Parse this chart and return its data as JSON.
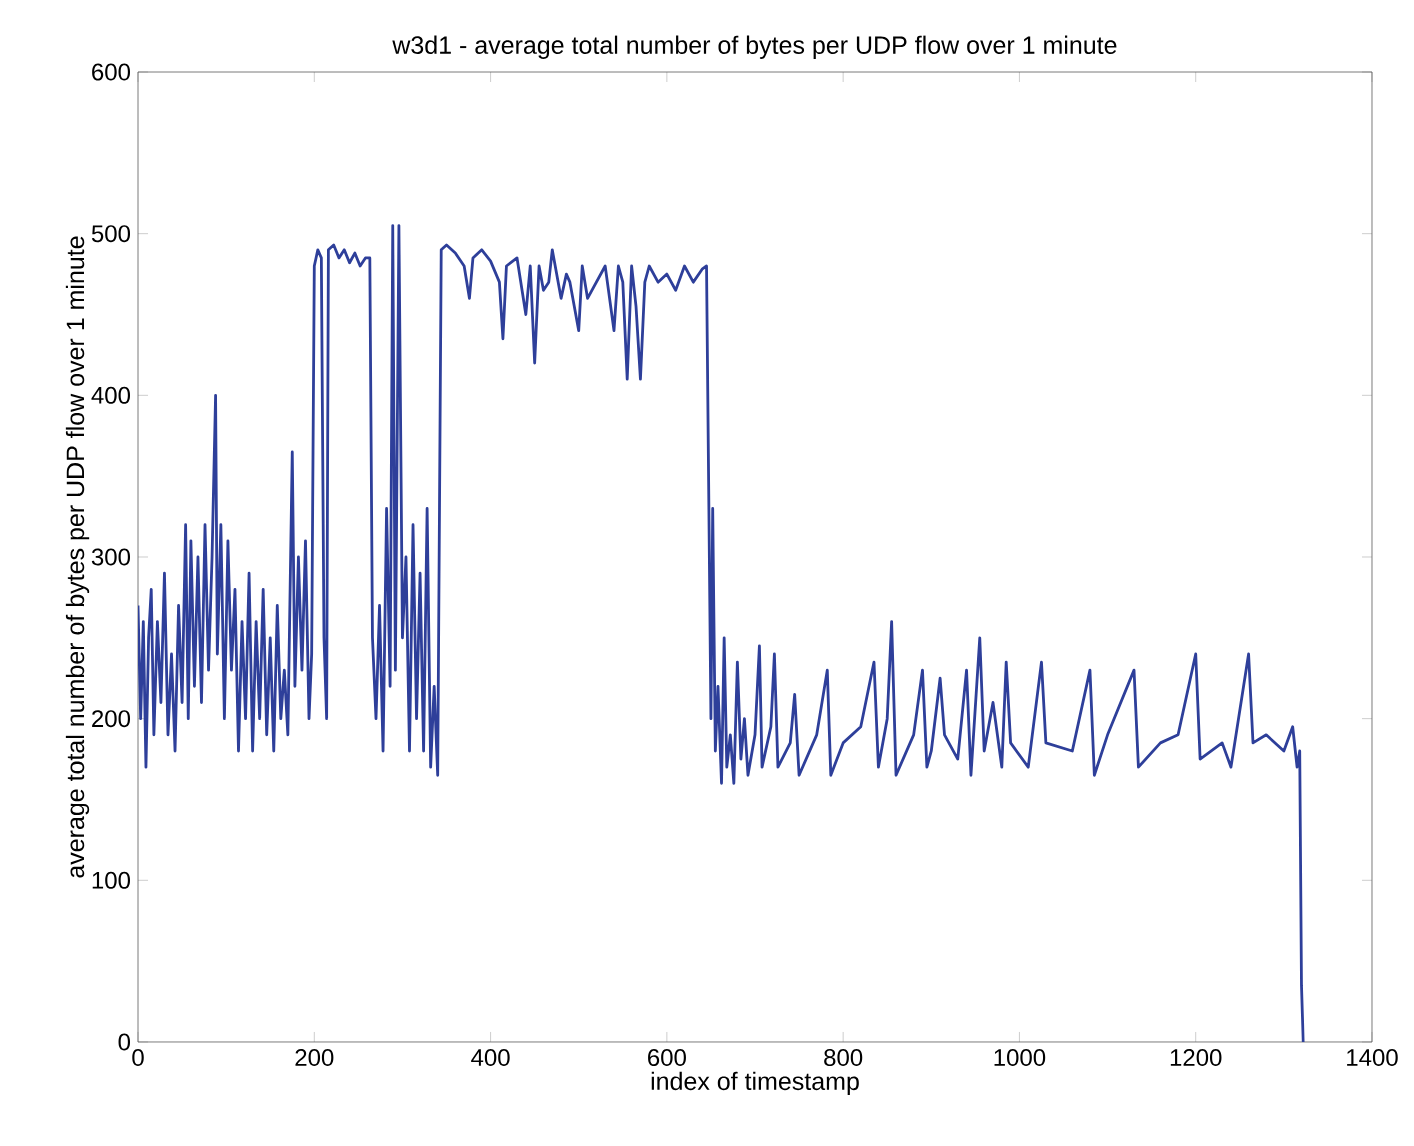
{
  "chart_data": {
    "type": "line",
    "title": "w3d1 - average total number of bytes per UDP flow over 1 minute",
    "xlabel": "index of timestamp",
    "ylabel": "average total number of bytes per UDP flow over 1 minute",
    "xlim": [
      0,
      1400
    ],
    "ylim": [
      0,
      600
    ],
    "xticks": [
      0,
      200,
      400,
      600,
      800,
      1000,
      1200,
      1400
    ],
    "yticks": [
      0,
      100,
      200,
      300,
      400,
      500,
      600
    ],
    "grid": false,
    "series": [
      {
        "color": "#2e3f9a",
        "x": [
          0,
          3,
          6,
          9,
          12,
          15,
          18,
          22,
          26,
          30,
          34,
          38,
          42,
          46,
          50,
          54,
          57,
          60,
          64,
          68,
          72,
          76,
          80,
          84,
          88,
          90,
          94,
          98,
          102,
          106,
          110,
          114,
          118,
          122,
          126,
          130,
          134,
          138,
          142,
          146,
          150,
          154,
          158,
          162,
          166,
          170,
          175,
          178,
          182,
          186,
          190,
          194,
          197,
          200,
          204,
          208,
          211,
          214,
          216,
          222,
          228,
          234,
          240,
          246,
          252,
          258,
          263,
          266,
          270,
          274,
          278,
          282,
          286,
          289,
          292,
          296,
          300,
          304,
          308,
          312,
          316,
          320,
          324,
          328,
          332,
          336,
          340,
          344,
          350,
          360,
          370,
          376,
          380,
          390,
          400,
          410,
          414,
          418,
          430,
          440,
          445,
          450,
          455,
          460,
          466,
          470,
          480,
          486,
          490,
          500,
          504,
          510,
          520,
          530,
          540,
          545,
          550,
          555,
          560,
          565,
          570,
          575,
          580,
          590,
          600,
          610,
          620,
          630,
          640,
          645,
          650,
          652,
          655,
          658,
          662,
          665,
          668,
          672,
          676,
          680,
          684,
          688,
          692,
          700,
          705,
          708,
          718,
          722,
          726,
          740,
          745,
          750,
          770,
          782,
          786,
          800,
          820,
          835,
          840,
          850,
          855,
          860,
          880,
          890,
          895,
          900,
          910,
          915,
          930,
          940,
          945,
          955,
          960,
          970,
          980,
          985,
          990,
          1010,
          1025,
          1030,
          1060,
          1080,
          1085,
          1100,
          1130,
          1135,
          1160,
          1180,
          1200,
          1205,
          1230,
          1240,
          1260,
          1265,
          1280,
          1300,
          1310,
          1315,
          1318,
          1320,
          1322
        ],
        "values": [
          270,
          200,
          260,
          170,
          250,
          280,
          190,
          260,
          210,
          290,
          190,
          240,
          180,
          270,
          210,
          320,
          200,
          310,
          220,
          300,
          210,
          320,
          230,
          300,
          400,
          240,
          320,
          200,
          310,
          230,
          280,
          180,
          260,
          200,
          290,
          180,
          260,
          200,
          280,
          190,
          250,
          180,
          270,
          200,
          230,
          190,
          365,
          220,
          300,
          230,
          310,
          200,
          240,
          480,
          490,
          485,
          250,
          200,
          490,
          493,
          485,
          490,
          482,
          488,
          480,
          485,
          485,
          250,
          200,
          270,
          180,
          330,
          220,
          505,
          230,
          505,
          250,
          300,
          180,
          320,
          200,
          290,
          180,
          330,
          170,
          220,
          165,
          490,
          493,
          488,
          480,
          460,
          485,
          490,
          483,
          470,
          435,
          480,
          485,
          450,
          480,
          420,
          480,
          465,
          470,
          490,
          460,
          475,
          470,
          440,
          480,
          460,
          470,
          480,
          440,
          480,
          470,
          410,
          480,
          455,
          410,
          470,
          480,
          470,
          475,
          465,
          480,
          470,
          478,
          480,
          200,
          330,
          180,
          220,
          160,
          250,
          170,
          190,
          160,
          235,
          175,
          200,
          165,
          190,
          245,
          170,
          195,
          240,
          170,
          185,
          215,
          165,
          190,
          230,
          165,
          185,
          195,
          235,
          170,
          200,
          260,
          165,
          190,
          230,
          170,
          180,
          225,
          190,
          175,
          230,
          165,
          250,
          180,
          210,
          170,
          235,
          185,
          170,
          235,
          185,
          180,
          230,
          165,
          190,
          230,
          170,
          185,
          190,
          240,
          175,
          185,
          170,
          240,
          185,
          190,
          180,
          195,
          170,
          180,
          35,
          0
        ]
      }
    ]
  }
}
